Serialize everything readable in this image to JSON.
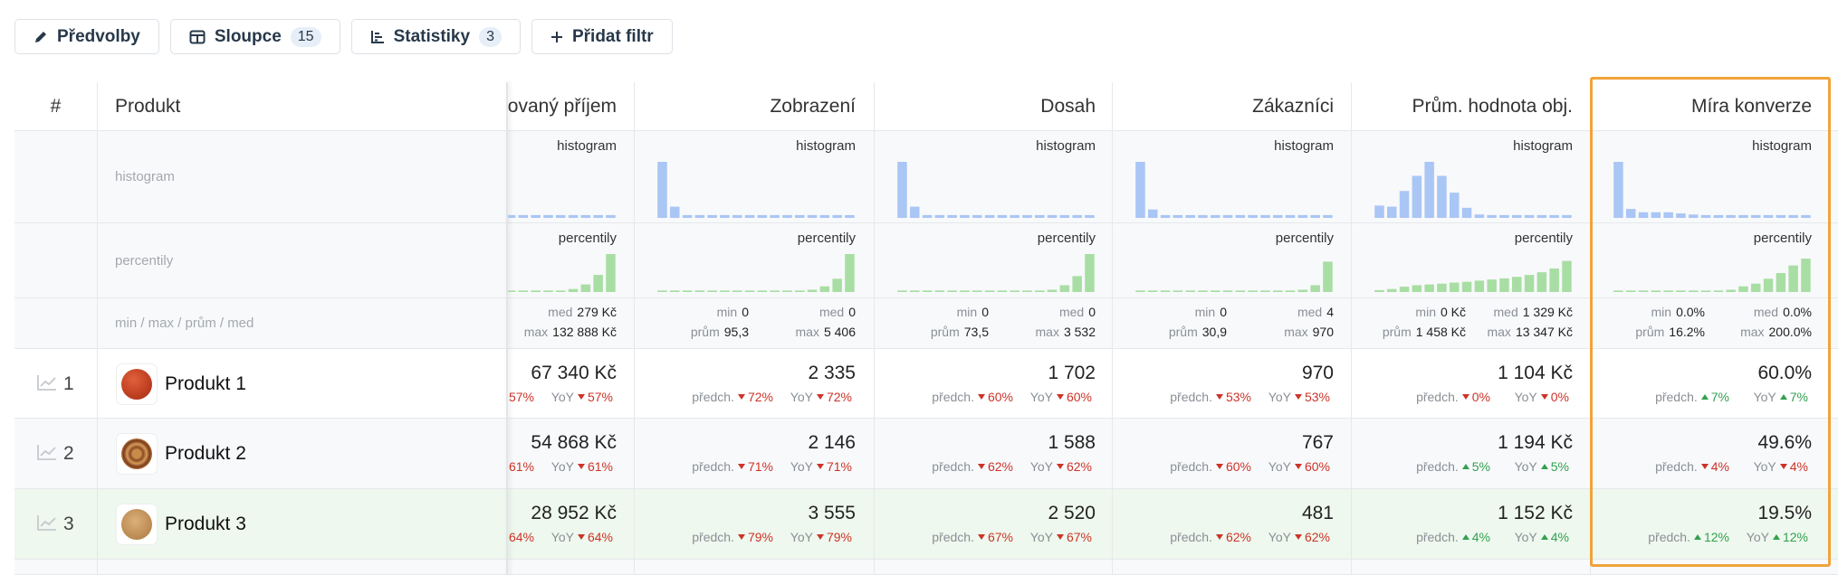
{
  "toolbar": [
    {
      "label": "Předvolby"
    },
    {
      "label": "Sloupce",
      "badge": "15"
    },
    {
      "label": "Statistiky",
      "badge": "3"
    },
    {
      "label": "Přidat filtr"
    }
  ],
  "table": {
    "header": {
      "index": "#",
      "product": "Produkt"
    },
    "stat_rows": {
      "histogram": "histogram",
      "percentiles": "percentily",
      "summary": "min / max / prům / med"
    },
    "rows": [
      {
        "index": "1",
        "name": "Produkt 1"
      },
      {
        "index": "2",
        "name": "Produkt 2"
      },
      {
        "index": "3",
        "name": "Produkt 3"
      }
    ],
    "columns": [
      {
        "title": "ovaný příjem",
        "histogram": {
          "label": "histogram",
          "values": [
            5,
            5,
            5,
            5,
            5,
            5,
            5,
            5,
            5
          ]
        },
        "percentiles": {
          "label": "percentily",
          "values": [
            4,
            4,
            4,
            4,
            4,
            8,
            20,
            45,
            100
          ]
        },
        "summary": {
          "med": {
            "label": "med",
            "value": "279 Kč"
          },
          "max": {
            "label": "max",
            "value": "132 888 Kč"
          }
        },
        "cells": [
          {
            "value": "67 340 Kč",
            "prev": {
              "value": "57%",
              "trend": "down"
            },
            "yoy": {
              "label": "YoY",
              "value": "57%",
              "trend": "down"
            }
          },
          {
            "value": "54 868 Kč",
            "prev": {
              "value": "61%",
              "trend": "down"
            },
            "yoy": {
              "label": "YoY",
              "value": "61%",
              "trend": "down"
            }
          },
          {
            "value": "28 952 Kč",
            "prev": {
              "value": "64%",
              "trend": "down"
            },
            "yoy": {
              "label": "YoY",
              "value": "64%",
              "trend": "down"
            }
          }
        ]
      },
      {
        "title": "Zobrazení",
        "histogram": {
          "label": "histogram",
          "values": [
            100,
            20,
            5,
            5,
            5,
            5,
            5,
            5,
            5,
            5,
            5,
            5,
            5,
            5,
            5,
            5
          ]
        },
        "percentiles": {
          "label": "percentily",
          "values": [
            4,
            4,
            4,
            4,
            4,
            4,
            4,
            4,
            4,
            4,
            4,
            4,
            6,
            15,
            35,
            100
          ]
        },
        "summary": {
          "min": {
            "label": "min",
            "value": "0"
          },
          "med": {
            "label": "med",
            "value": "0"
          },
          "avg": {
            "label": "prům",
            "value": "95,3"
          },
          "max": {
            "label": "max",
            "value": "5 406"
          }
        },
        "cells": [
          {
            "value": "2 335",
            "prev": {
              "label": "předch.",
              "value": "72%",
              "trend": "down"
            },
            "yoy": {
              "label": "YoY",
              "value": "72%",
              "trend": "down"
            }
          },
          {
            "value": "2 146",
            "prev": {
              "label": "předch.",
              "value": "71%",
              "trend": "down"
            },
            "yoy": {
              "label": "YoY",
              "value": "71%",
              "trend": "down"
            }
          },
          {
            "value": "3 555",
            "prev": {
              "label": "předch.",
              "value": "79%",
              "trend": "down"
            },
            "yoy": {
              "label": "YoY",
              "value": "79%",
              "trend": "down"
            }
          }
        ]
      },
      {
        "title": "Dosah",
        "histogram": {
          "label": "histogram",
          "values": [
            100,
            20,
            5,
            5,
            5,
            5,
            5,
            5,
            5,
            5,
            5,
            5,
            5,
            5,
            5,
            5
          ]
        },
        "percentiles": {
          "label": "percentily",
          "values": [
            4,
            4,
            4,
            4,
            4,
            4,
            4,
            4,
            4,
            4,
            4,
            4,
            6,
            18,
            42,
            100
          ]
        },
        "summary": {
          "min": {
            "label": "min",
            "value": "0"
          },
          "med": {
            "label": "med",
            "value": "0"
          },
          "avg": {
            "label": "prům",
            "value": "73,5"
          },
          "max": {
            "label": "max",
            "value": "3 532"
          }
        },
        "cells": [
          {
            "value": "1 702",
            "prev": {
              "label": "předch.",
              "value": "60%",
              "trend": "down"
            },
            "yoy": {
              "label": "YoY",
              "value": "60%",
              "trend": "down"
            }
          },
          {
            "value": "1 588",
            "prev": {
              "label": "předch.",
              "value": "62%",
              "trend": "down"
            },
            "yoy": {
              "label": "YoY",
              "value": "62%",
              "trend": "down"
            }
          },
          {
            "value": "2 520",
            "prev": {
              "label": "předch.",
              "value": "67%",
              "trend": "down"
            },
            "yoy": {
              "label": "YoY",
              "value": "67%",
              "trend": "down"
            }
          }
        ]
      },
      {
        "title": "Zákazníci",
        "histogram": {
          "label": "histogram",
          "values": [
            100,
            15,
            5,
            5,
            5,
            5,
            5,
            5,
            5,
            5,
            5,
            5,
            5,
            5,
            5,
            5
          ]
        },
        "percentiles": {
          "label": "percentily",
          "values": [
            4,
            4,
            4,
            4,
            4,
            4,
            4,
            4,
            4,
            4,
            4,
            4,
            4,
            6,
            18,
            80
          ]
        },
        "summary": {
          "min": {
            "label": "min",
            "value": "0"
          },
          "med": {
            "label": "med",
            "value": "4"
          },
          "avg": {
            "label": "prům",
            "value": "30,9"
          },
          "max": {
            "label": "max",
            "value": "970"
          }
        },
        "cells": [
          {
            "value": "970",
            "prev": {
              "label": "předch.",
              "value": "53%",
              "trend": "down"
            },
            "yoy": {
              "label": "YoY",
              "value": "53%",
              "trend": "down"
            }
          },
          {
            "value": "767",
            "prev": {
              "label": "předch.",
              "value": "60%",
              "trend": "down"
            },
            "yoy": {
              "label": "YoY",
              "value": "60%",
              "trend": "down"
            }
          },
          {
            "value": "481",
            "prev": {
              "label": "předch.",
              "value": "62%",
              "trend": "down"
            },
            "yoy": {
              "label": "YoY",
              "value": "62%",
              "trend": "down"
            }
          }
        ]
      },
      {
        "title": "Prům. hodnota obj.",
        "histogram": {
          "label": "histogram",
          "values": [
            22,
            20,
            48,
            75,
            100,
            75,
            45,
            18,
            6,
            5,
            5,
            5,
            5,
            5,
            5,
            5
          ]
        },
        "percentiles": {
          "label": "percentily",
          "values": [
            5,
            8,
            14,
            18,
            20,
            22,
            25,
            27,
            30,
            33,
            36,
            40,
            45,
            52,
            62,
            82
          ]
        },
        "summary": {
          "min": {
            "label": "min",
            "value": "0 Kč"
          },
          "med": {
            "label": "med",
            "value": "1 329 Kč"
          },
          "avg": {
            "label": "prům",
            "value": "1 458 Kč"
          },
          "max": {
            "label": "max",
            "value": "13 347 Kč"
          }
        },
        "cells": [
          {
            "value": "1 104 Kč",
            "prev": {
              "label": "předch.",
              "value": "0%",
              "trend": "down"
            },
            "yoy": {
              "label": "YoY",
              "value": "0%",
              "trend": "down"
            }
          },
          {
            "value": "1 194 Kč",
            "prev": {
              "label": "předch.",
              "value": "5%",
              "trend": "up"
            },
            "yoy": {
              "label": "YoY",
              "value": "5%",
              "trend": "up"
            }
          },
          {
            "value": "1 152 Kč",
            "prev": {
              "label": "předch.",
              "value": "4%",
              "trend": "up"
            },
            "yoy": {
              "label": "YoY",
              "value": "4%",
              "trend": "up"
            }
          }
        ]
      },
      {
        "title": "Míra konverze",
        "histogram": {
          "label": "histogram",
          "values": [
            100,
            16,
            10,
            10,
            10,
            8,
            6,
            5,
            5,
            5,
            5,
            5,
            5,
            5,
            5,
            5
          ]
        },
        "percentiles": {
          "label": "percentily",
          "values": [
            4,
            4,
            4,
            4,
            4,
            4,
            4,
            4,
            4,
            6,
            15,
            22,
            35,
            50,
            70,
            88
          ]
        },
        "summary": {
          "min": {
            "label": "min",
            "value": "0.0%"
          },
          "med": {
            "label": "med",
            "value": "0.0%"
          },
          "avg": {
            "label": "prům",
            "value": "16.2%"
          },
          "max": {
            "label": "max",
            "value": "200.0%"
          }
        },
        "cells": [
          {
            "value": "60.0%",
            "prev": {
              "label": "předch.",
              "value": "7%",
              "trend": "up"
            },
            "yoy": {
              "label": "YoY",
              "value": "7%",
              "trend": "up"
            }
          },
          {
            "value": "49.6%",
            "prev": {
              "label": "předch.",
              "value": "4%",
              "trend": "down"
            },
            "yoy": {
              "label": "YoY",
              "value": "4%",
              "trend": "down"
            }
          },
          {
            "value": "19.5%",
            "prev": {
              "label": "předch.",
              "value": "12%",
              "trend": "up"
            },
            "yoy": {
              "label": "YoY",
              "value": "12%",
              "trend": "up"
            }
          }
        ]
      }
    ]
  }
}
